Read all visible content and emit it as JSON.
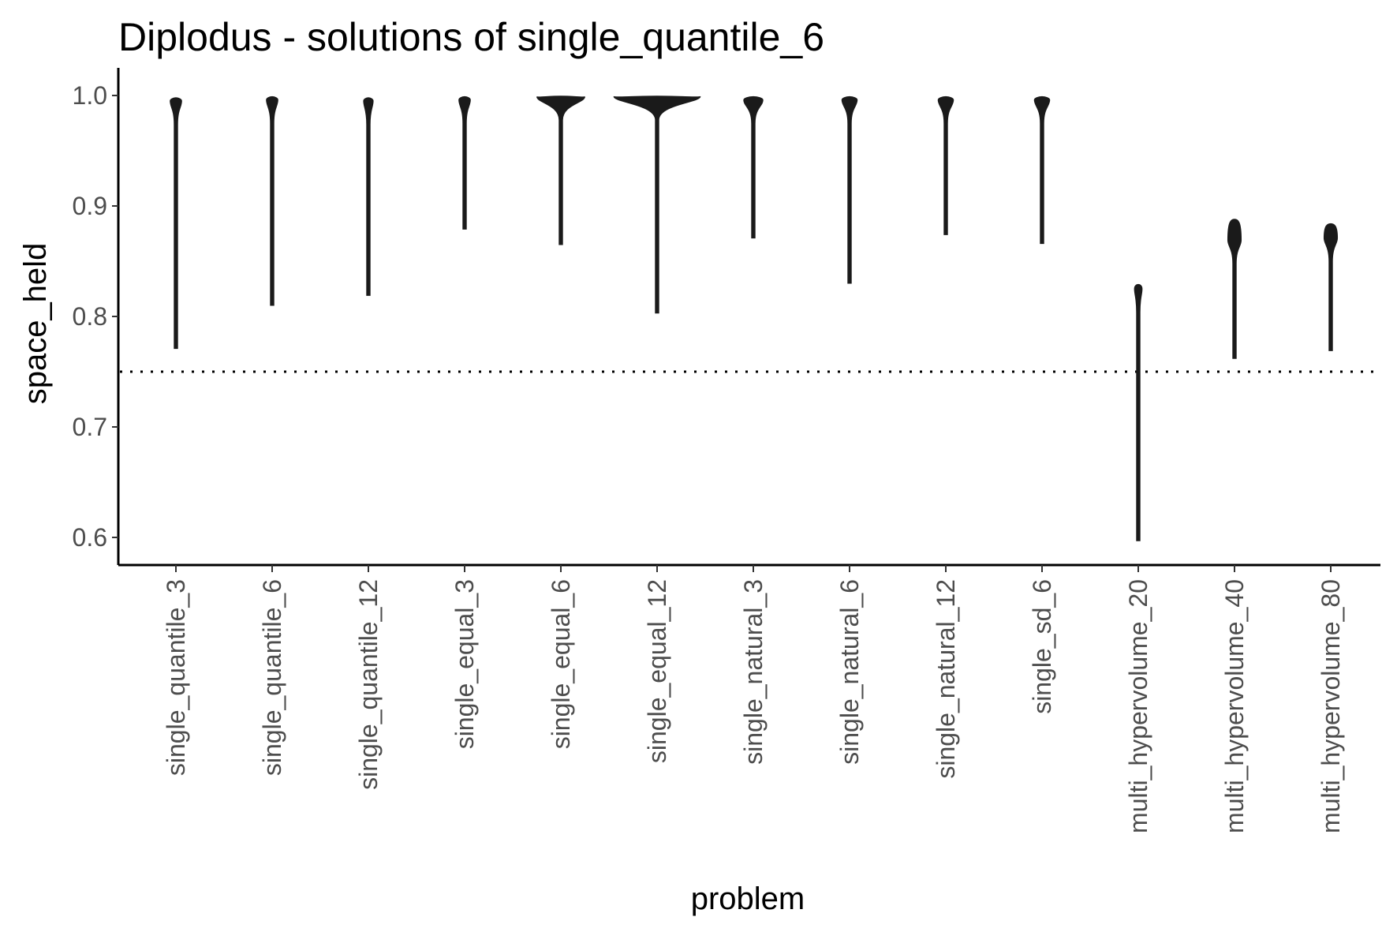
{
  "chart_data": {
    "type": "violin",
    "title": "Diplodus - solutions of single_quantile_6",
    "xlabel": "problem",
    "ylabel": "space_held",
    "ylim": [
      0.575,
      1.015
    ],
    "yticks": [
      0.6,
      0.7,
      0.8,
      0.9,
      1.0
    ],
    "ytick_labels": [
      "0.6",
      "0.7",
      "0.8",
      "0.9",
      "1.0"
    ],
    "reference_line": {
      "y": 0.75,
      "style": "dotted"
    },
    "grid": false,
    "categories": [
      "single_quantile_3",
      "single_quantile_6",
      "single_quantile_12",
      "single_equal_3",
      "single_equal_6",
      "single_equal_12",
      "single_natural_3",
      "single_natural_6",
      "single_natural_12",
      "single_sd_6",
      "multi_hypervolume_20",
      "multi_hypervolume_40",
      "multi_hypervolume_80"
    ],
    "series": [
      {
        "category": "single_quantile_3",
        "min": 0.771,
        "max": 0.998,
        "mode": 0.995,
        "mode_halfwidth": 0.006
      },
      {
        "category": "single_quantile_6",
        "min": 0.81,
        "max": 0.999,
        "mode": 0.996,
        "mode_halfwidth": 0.006
      },
      {
        "category": "single_quantile_12",
        "min": 0.819,
        "max": 0.998,
        "mode": 0.995,
        "mode_halfwidth": 0.005
      },
      {
        "category": "single_equal_3",
        "min": 0.879,
        "max": 0.999,
        "mode": 0.996,
        "mode_halfwidth": 0.006
      },
      {
        "category": "single_equal_6",
        "min": 0.865,
        "max": 0.9995,
        "mode": 0.999,
        "mode_halfwidth": 0.025
      },
      {
        "category": "single_equal_12",
        "min": 0.803,
        "max": 0.9995,
        "mode": 0.9992,
        "mode_halfwidth": 0.045
      },
      {
        "category": "single_natural_3",
        "min": 0.871,
        "max": 0.999,
        "mode": 0.996,
        "mode_halfwidth": 0.01
      },
      {
        "category": "single_natural_6",
        "min": 0.83,
        "max": 0.999,
        "mode": 0.996,
        "mode_halfwidth": 0.008
      },
      {
        "category": "single_natural_12",
        "min": 0.874,
        "max": 0.999,
        "mode": 0.996,
        "mode_halfwidth": 0.008
      },
      {
        "category": "single_sd_6",
        "min": 0.866,
        "max": 0.999,
        "mode": 0.996,
        "mode_halfwidth": 0.008
      },
      {
        "category": "multi_hypervolume_20",
        "min": 0.597,
        "max": 0.829,
        "mode": 0.825,
        "mode_halfwidth": 0.004
      },
      {
        "category": "multi_hypervolume_40",
        "min": 0.762,
        "max": 0.888,
        "mode": 0.869,
        "mode_halfwidth": 0.007
      },
      {
        "category": "multi_hypervolume_80",
        "min": 0.769,
        "max": 0.884,
        "mode": 0.871,
        "mode_halfwidth": 0.007
      }
    ],
    "colors": {
      "violin": "#1a1a1a",
      "axis": "#000000",
      "tick_text": "#4d4d4d"
    }
  }
}
